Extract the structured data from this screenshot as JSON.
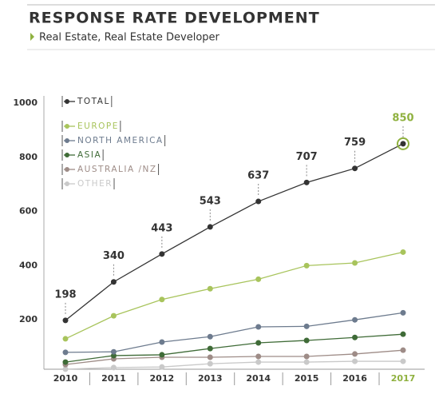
{
  "chart_data": {
    "type": "line",
    "title": "RESPONSE RATE DEVELOPMENT",
    "subtitle": "Real Estate, Real Estate Developer",
    "categories": [
      "2010",
      "2011",
      "2012",
      "2013",
      "2014",
      "2015",
      "2016",
      "2017"
    ],
    "ylim": [
      0,
      1000
    ],
    "yticks": [
      200,
      400,
      600,
      800,
      1000
    ],
    "series": [
      {
        "name": "TOTAL",
        "color": "#333333",
        "values": [
          198,
          340,
          443,
          543,
          637,
          707,
          759,
          850
        ],
        "labels": true
      },
      {
        "name": "EUROPE",
        "color": "#a8c45c",
        "values": [
          130,
          215,
          275,
          315,
          350,
          400,
          410,
          450
        ]
      },
      {
        "name": "NORTH AMERICA",
        "color": "#6d7b8e",
        "values": [
          80,
          82,
          118,
          138,
          174,
          176,
          200,
          226
        ]
      },
      {
        "name": "ASIA",
        "color": "#3f6b37",
        "values": [
          44,
          68,
          71,
          94,
          115,
          124,
          135,
          147
        ]
      },
      {
        "name": "AUSTRALIA /NZ",
        "color": "#9e8c87",
        "values": [
          35,
          56,
          62,
          62,
          65,
          65,
          74,
          88
        ]
      },
      {
        "name": "OTHER",
        "color": "#c9c9c9",
        "values": [
          18,
          24,
          26,
          38,
          44,
          44,
          47,
          47
        ]
      }
    ]
  }
}
